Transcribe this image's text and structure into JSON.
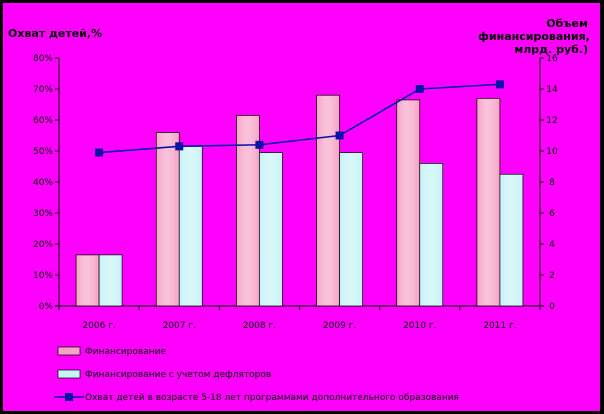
{
  "colors": {
    "background": "#ff00ff",
    "frame": "#000000",
    "series_financing": "#f7a3c8",
    "series_deflated": "#c6f3f6",
    "series_coverage": "#0b12a6"
  },
  "chart_data": {
    "type": "bar",
    "left_axis_title": "Охват детей,%",
    "right_axis_title": [
      "Объем",
      "финансирования,",
      "млрд. руб.)"
    ],
    "categories": [
      "2006 г.",
      "2007 г.",
      "2008 г.",
      "2009 г.",
      "2010 г.",
      "2011 г."
    ],
    "left_ticks": [
      "0%",
      "10%",
      "20%",
      "30%",
      "40%",
      "50%",
      "60%",
      "70%",
      "80%"
    ],
    "right_ticks": [
      "0",
      "2",
      "4",
      "6",
      "8",
      "10",
      "12",
      "14",
      "16"
    ],
    "ylim_left": [
      0,
      80
    ],
    "ylim_right": [
      0,
      16
    ],
    "grid": false,
    "legend_placement": "bottom",
    "series": [
      {
        "name": "Финансирование",
        "type": "bar",
        "axis": "right",
        "values": [
          3.3,
          11.2,
          12.3,
          13.6,
          13.3,
          13.4
        ]
      },
      {
        "name": "Финансирование с учетом дефляторов",
        "type": "bar",
        "axis": "right",
        "values": [
          3.3,
          10.3,
          9.9,
          9.9,
          9.2,
          8.5
        ]
      },
      {
        "name": "Охват детей в возрасте 5-18 лет программами дополнительного образования",
        "type": "line",
        "axis": "left",
        "values": [
          49.5,
          51.5,
          52,
          55,
          70,
          71.5
        ]
      }
    ]
  }
}
